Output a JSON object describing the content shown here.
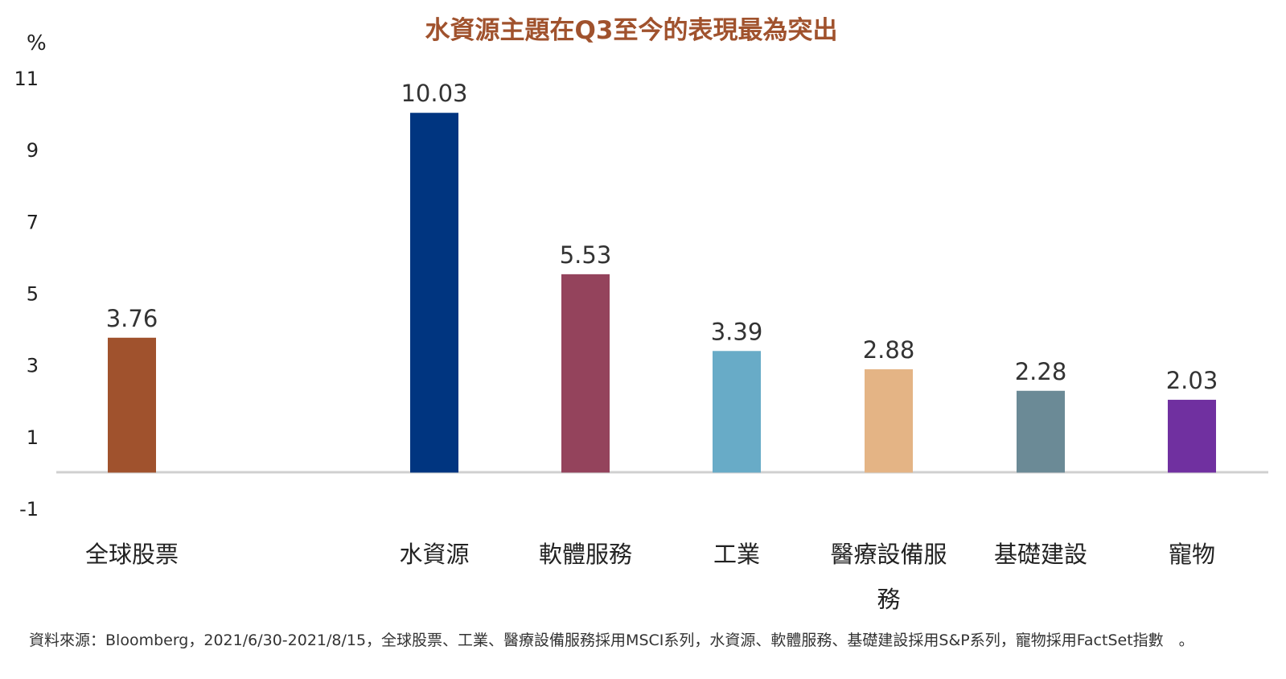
{
  "chart_data": {
    "type": "bar",
    "title": "水資源主題在Q3至今的表現最為突出",
    "y_unit": "%",
    "categories": [
      "全球股票",
      "水資源",
      "軟體服務",
      "工業",
      "醫療設備服務",
      "基礎建設",
      "寵物"
    ],
    "values": [
      3.76,
      10.03,
      5.53,
      3.39,
      2.88,
      2.28,
      2.03
    ],
    "value_labels": [
      "3.76",
      "10.03",
      "5.53",
      "3.39",
      "2.88",
      "2.28",
      "2.03"
    ],
    "colors": [
      "#a0522d",
      "#003580",
      "#94435c",
      "#68abc7",
      "#e4b485",
      "#6b8a96",
      "#7030a0"
    ],
    "ylim": [
      -1,
      11
    ],
    "yticks": [
      11,
      9,
      7,
      5,
      3,
      1,
      -1
    ],
    "grid": false,
    "legend": "none"
  },
  "source_note": "資料來源：Bloomberg，2021/6/30-2021/8/15，全球股票、工業、醫療設備服務採用MSCI系列，水資源、軟體服務、基礎建設採用S&P系列，寵物採用FactSet指數　。"
}
